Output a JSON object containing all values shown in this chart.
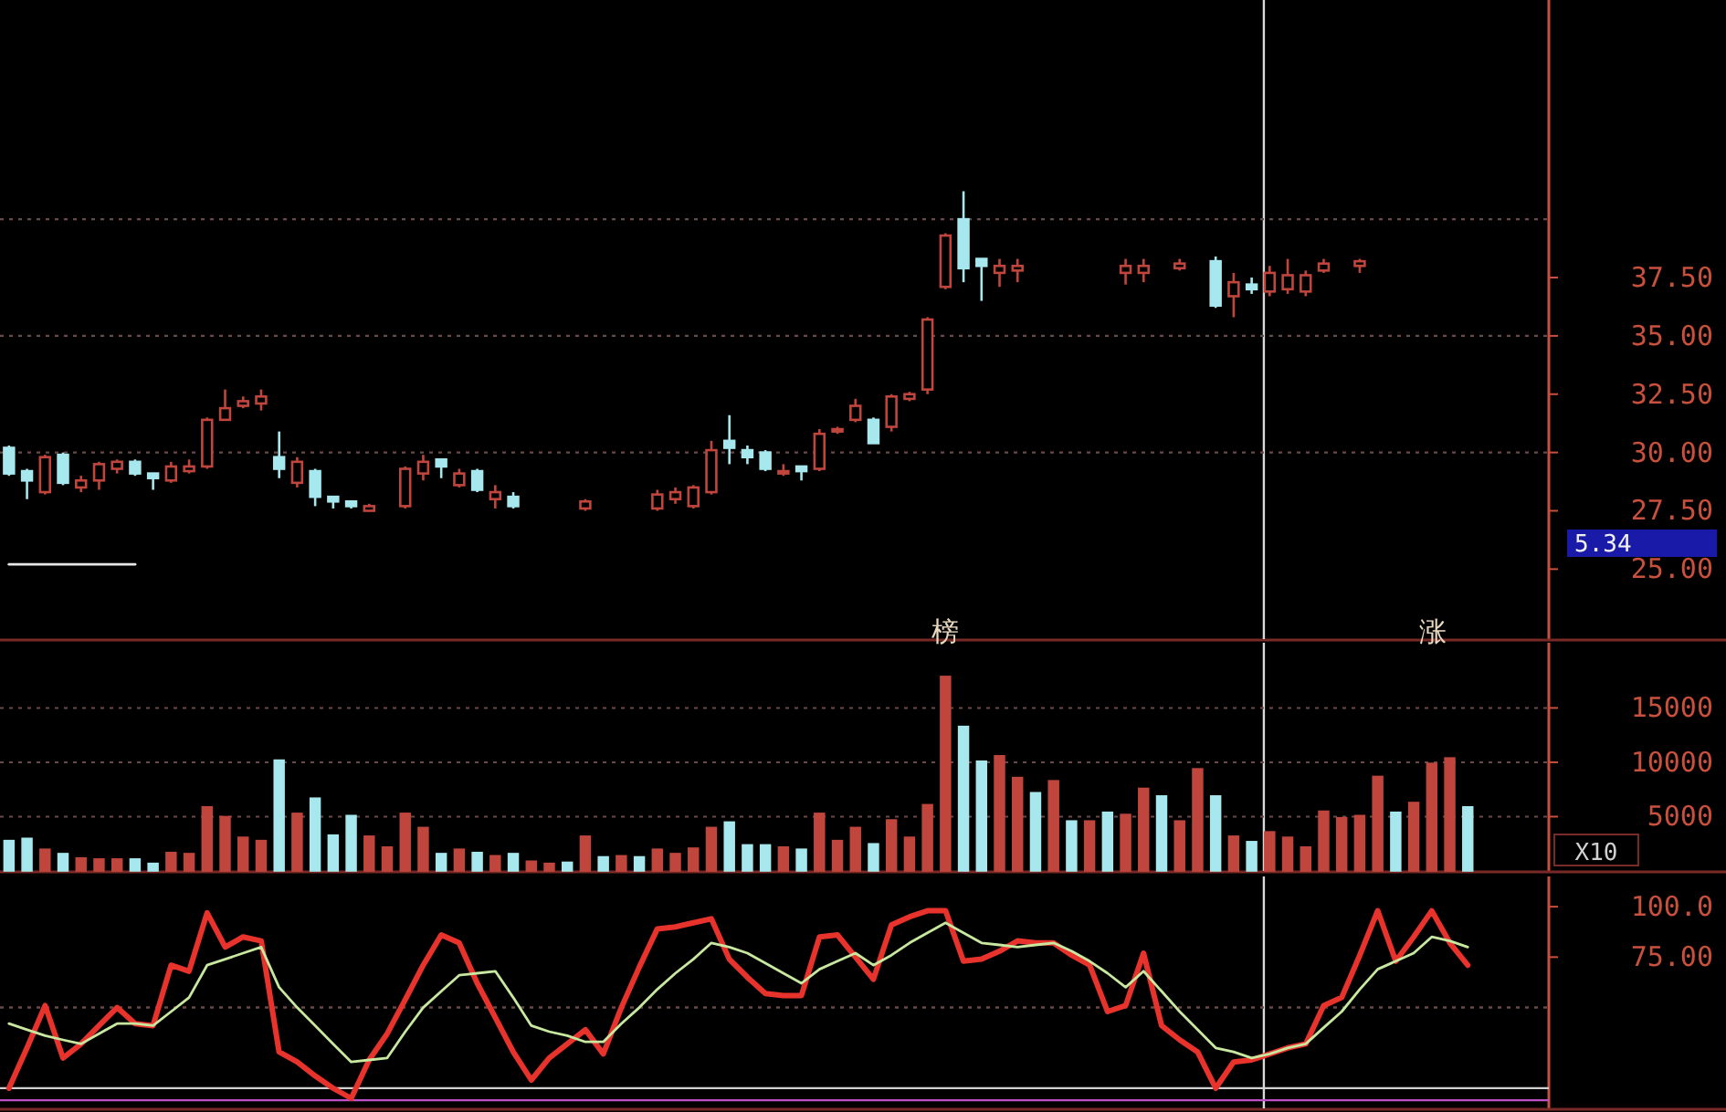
{
  "chart_data": [
    {
      "type": "candlestick",
      "tick_labels": "y",
      "categories": [
        null,
        null,
        null,
        null,
        null,
        null,
        null,
        null,
        null,
        null,
        null,
        null,
        null,
        null,
        null,
        null,
        null,
        null,
        null,
        null,
        null,
        null,
        null,
        null,
        null,
        null,
        null,
        null,
        null,
        null,
        null,
        null,
        null,
        null,
        null,
        null,
        null,
        null,
        null,
        null,
        null,
        null,
        null,
        null,
        null,
        null,
        null,
        null,
        null,
        null,
        null,
        null,
        null,
        null,
        null,
        null,
        null,
        null,
        null,
        null,
        null,
        null,
        null,
        null,
        null,
        null,
        null,
        null,
        null,
        null,
        null,
        null,
        null,
        null,
        null,
        null,
        null,
        null,
        null,
        null,
        null,
        null,
        null,
        null,
        null,
        null
      ],
      "ohlc": [
        [
          30.2,
          30.3,
          29.0,
          29.1
        ],
        [
          29.2,
          29.3,
          28.0,
          28.8
        ],
        [
          28.3,
          29.9,
          28.2,
          29.8
        ],
        [
          29.9,
          30.0,
          28.6,
          28.7
        ],
        [
          28.5,
          29.0,
          28.3,
          28.8
        ],
        [
          28.8,
          29.6,
          28.4,
          29.5
        ],
        [
          29.3,
          29.7,
          29.1,
          29.6
        ],
        [
          29.6,
          29.7,
          29.0,
          29.1
        ],
        [
          29.1,
          29.1,
          28.4,
          28.9
        ],
        [
          28.8,
          29.6,
          28.7,
          29.4
        ],
        [
          29.2,
          29.7,
          29.1,
          29.4
        ],
        [
          29.4,
          31.5,
          29.3,
          31.4
        ],
        [
          31.4,
          32.7,
          31.4,
          31.9
        ],
        [
          32.0,
          32.4,
          31.9,
          32.2
        ],
        [
          32.1,
          32.7,
          31.8,
          32.4
        ],
        [
          29.8,
          30.9,
          28.9,
          29.3
        ],
        [
          28.7,
          29.8,
          28.5,
          29.6
        ],
        [
          29.2,
          29.3,
          27.7,
          28.1
        ],
        [
          28.1,
          28.1,
          27.6,
          27.9
        ],
        [
          27.9,
          27.9,
          27.6,
          27.7
        ],
        [
          27.5,
          27.8,
          27.5,
          27.7
        ],
        null,
        [
          27.7,
          29.4,
          27.6,
          29.3
        ],
        [
          29.1,
          29.9,
          28.8,
          29.6
        ],
        [
          29.7,
          29.7,
          28.9,
          29.4
        ],
        [
          28.6,
          29.3,
          28.5,
          29.1
        ],
        [
          29.2,
          29.3,
          28.3,
          28.4
        ],
        [
          28.0,
          28.6,
          27.6,
          28.3
        ],
        [
          28.1,
          28.3,
          27.6,
          27.7
        ],
        null,
        null,
        null,
        [
          27.6,
          28.0,
          27.5,
          27.9
        ],
        null,
        null,
        null,
        [
          27.6,
          28.4,
          27.5,
          28.2
        ],
        [
          28.0,
          28.5,
          27.8,
          28.3
        ],
        [
          27.7,
          28.6,
          27.6,
          28.5
        ],
        [
          28.3,
          30.5,
          28.2,
          30.1
        ],
        [
          30.5,
          31.6,
          29.5,
          30.2
        ],
        [
          30.1,
          30.3,
          29.5,
          29.8
        ],
        [
          30.0,
          30.1,
          29.2,
          29.3
        ],
        [
          29.1,
          29.5,
          29.0,
          29.2
        ],
        [
          29.4,
          29.4,
          28.8,
          29.2
        ],
        [
          29.3,
          31.0,
          29.2,
          30.8
        ],
        [
          30.9,
          31.1,
          30.8,
          31.0
        ],
        [
          31.4,
          32.3,
          31.3,
          32.0
        ],
        [
          31.4,
          31.5,
          30.4,
          30.4
        ],
        [
          31.1,
          32.5,
          30.9,
          32.4
        ],
        [
          32.3,
          32.6,
          32.2,
          32.5
        ],
        [
          32.7,
          35.8,
          32.5,
          35.7
        ],
        [
          37.1,
          39.4,
          37.0,
          39.3
        ],
        [
          40.0,
          41.2,
          37.3,
          37.9
        ],
        [
          38.3,
          38.3,
          36.5,
          38.0
        ],
        [
          37.7,
          38.3,
          37.1,
          38.0
        ],
        [
          37.8,
          38.3,
          37.3,
          38.0
        ],
        null,
        null,
        null,
        null,
        null,
        [
          37.7,
          38.3,
          37.2,
          38.0
        ],
        [
          37.7,
          38.3,
          37.3,
          38.0
        ],
        null,
        [
          37.9,
          38.3,
          37.8,
          38.1
        ],
        null,
        [
          38.2,
          38.4,
          36.2,
          36.3
        ],
        [
          36.7,
          37.7,
          35.8,
          37.3
        ],
        [
          37.2,
          37.5,
          36.8,
          37.0
        ],
        [
          36.9,
          38.0,
          36.7,
          37.7
        ],
        [
          37.0,
          38.3,
          36.8,
          37.6
        ],
        [
          36.9,
          37.8,
          36.7,
          37.6
        ],
        [
          37.8,
          38.3,
          37.7,
          38.1
        ],
        null,
        [
          38.0,
          38.3,
          37.7,
          38.2
        ],
        null,
        null,
        null,
        null,
        null,
        null,
        null,
        null,
        null,
        null
      ],
      "colors": [
        "#a6e8ee",
        "#a6e8ee",
        "#c0463d",
        "#a6e8ee",
        "#c0463d",
        "#c0463d",
        "#c0463d",
        "#a6e8ee",
        "#a6e8ee",
        "#c0463d",
        "#c0463d",
        "#c0463d",
        "#c0463d",
        "#c0463d",
        "#c0463d",
        "#a6e8ee",
        "#c0463d",
        "#a6e8ee",
        "#a6e8ee",
        "#a6e8ee",
        "#c0463d",
        null,
        "#c0463d",
        "#c0463d",
        "#a6e8ee",
        "#c0463d",
        "#a6e8ee",
        "#c0463d",
        "#a6e8ee",
        null,
        null,
        null,
        "#c0463d",
        null,
        null,
        null,
        "#c0463d",
        "#c0463d",
        "#c0463d",
        "#c0463d",
        "#a6e8ee",
        "#a6e8ee",
        "#a6e8ee",
        "#c0463d",
        "#a6e8ee",
        "#c0463d",
        "#c0463d",
        "#c0463d",
        "#a6e8ee",
        "#c0463d",
        "#c0463d",
        "#c0463d",
        "#c0463d",
        "#a6e8ee",
        "#a6e8ee",
        "#c0463d",
        "#c0463d",
        null,
        null,
        null,
        null,
        null,
        "#c0463d",
        "#c0463d",
        null,
        "#c0463d",
        null,
        "#a6e8ee",
        "#c0463d",
        "#a6e8ee",
        "#c0463d",
        "#c0463d",
        "#c0463d",
        "#c0463d",
        null,
        "#c0463d",
        null,
        null,
        null,
        null,
        null,
        null,
        null,
        null,
        null,
        null
      ],
      "ylim": [
        22,
        49.4
      ],
      "yticks": [
        {
          "value": 25,
          "label": "25.00"
        },
        {
          "value": 27.5,
          "label": "27.50"
        },
        {
          "value": 30,
          "label": "30.00"
        },
        {
          "value": 32.5,
          "label": "32.50"
        },
        {
          "value": 35,
          "label": "35.00"
        },
        {
          "value": 37.5,
          "label": "37.50"
        }
      ],
      "ref_lines": [
        {
          "axis": "y",
          "value": 30,
          "line_style": "dotted",
          "color": "#6a4a48"
        },
        {
          "axis": "y",
          "value": 35,
          "line_style": "dotted",
          "color": "#6a4a48"
        },
        {
          "axis": "y",
          "value": 40,
          "line_style": "dotted",
          "color": "#6a4a48"
        }
      ],
      "series": [
        {
          "type": "line",
          "color": "#e8e8e8",
          "values": [
            25.2,
            25.2,
            25.2,
            25.2,
            25.2,
            25.2,
            25.2,
            25.2,
            null,
            null,
            null,
            null,
            null,
            null,
            null,
            null,
            null,
            null,
            null,
            null,
            null,
            null,
            null,
            null,
            null,
            null,
            null,
            null,
            null,
            null,
            null,
            null,
            null,
            null,
            null,
            null,
            null,
            null,
            null,
            null,
            null,
            null,
            null,
            null,
            null,
            null,
            null,
            null,
            null,
            null,
            null,
            null,
            null,
            null,
            null,
            null,
            null,
            null,
            null,
            null,
            null,
            null,
            null,
            null,
            null,
            null,
            null,
            null,
            null,
            null,
            null,
            null,
            null,
            null,
            null,
            null,
            null,
            null,
            null,
            null,
            null,
            null,
            null,
            null,
            null,
            null
          ]
        }
      ],
      "annotations": [
        "5.34"
      ]
    },
    {
      "type": "bar",
      "tick_labels": "y",
      "grid": "y",
      "ylabel": "X10",
      "categories": [
        null,
        null,
        null,
        null,
        null,
        null,
        null,
        null,
        null,
        null,
        null,
        null,
        null,
        null,
        null,
        null,
        null,
        null,
        null,
        null,
        null,
        null,
        null,
        null,
        null,
        null,
        null,
        null,
        null,
        null,
        null,
        null,
        null,
        null,
        null,
        null,
        null,
        null,
        null,
        null,
        null,
        null,
        null,
        null,
        null,
        null,
        null,
        null,
        null,
        null,
        null,
        null,
        null,
        null,
        null,
        null,
        null,
        null,
        null,
        null,
        null,
        null,
        null,
        null,
        null,
        null,
        null,
        null,
        null,
        null,
        null,
        null,
        null,
        null,
        null,
        null,
        null,
        null,
        null,
        null,
        null,
        null,
        null,
        null,
        null,
        null
      ],
      "values": [
        2800,
        3000,
        2000,
        1600,
        1200,
        1100,
        1100,
        1100,
        700,
        1700,
        1600,
        5900,
        5000,
        3100,
        2800,
        10200,
        5300,
        6700,
        3300,
        5100,
        3200,
        2200,
        5300,
        4000,
        1600,
        2000,
        1700,
        1400,
        1600,
        900,
        700,
        800,
        3200,
        1300,
        1400,
        1300,
        2000,
        1600,
        2100,
        4000,
        4500,
        2400,
        2400,
        2200,
        2000,
        5300,
        2800,
        4000,
        2500,
        4700,
        3100,
        6100,
        17900,
        13300,
        10100,
        10600,
        8600,
        7200,
        8300,
        4600,
        4600,
        5400,
        5200,
        7600,
        6900,
        4600,
        9400,
        6900,
        3200,
        2700,
        3600,
        3100,
        2200,
        5500,
        4900,
        5100,
        8700,
        5400,
        6300,
        9900,
        10400,
        5900,
        null,
        null,
        null,
        null
      ],
      "colors": [
        "#a6e8ee",
        "#a6e8ee",
        "#c0463d",
        "#a6e8ee",
        "#c0463d",
        "#c0463d",
        "#c0463d",
        "#a6e8ee",
        "#a6e8ee",
        "#c0463d",
        "#c0463d",
        "#c0463d",
        "#c0463d",
        "#c0463d",
        "#c0463d",
        "#a6e8ee",
        "#c0463d",
        "#a6e8ee",
        "#a6e8ee",
        "#a6e8ee",
        "#c0463d",
        "#c0463d",
        "#c0463d",
        "#c0463d",
        "#a6e8ee",
        "#c0463d",
        "#a6e8ee",
        "#c0463d",
        "#a6e8ee",
        "#c0463d",
        "#c0463d",
        "#a6e8ee",
        "#c0463d",
        "#a6e8ee",
        "#c0463d",
        "#a6e8ee",
        "#c0463d",
        "#c0463d",
        "#c0463d",
        "#c0463d",
        "#a6e8ee",
        "#a6e8ee",
        "#a6e8ee",
        "#c0463d",
        "#a6e8ee",
        "#c0463d",
        "#c0463d",
        "#c0463d",
        "#a6e8ee",
        "#c0463d",
        "#c0463d",
        "#c0463d",
        "#c0463d",
        "#a6e8ee",
        "#a6e8ee",
        "#c0463d",
        "#c0463d",
        "#a6e8ee",
        "#c0463d",
        "#a6e8ee",
        "#c0463d",
        "#a6e8ee",
        "#c0463d",
        "#c0463d",
        "#a6e8ee",
        "#c0463d",
        "#c0463d",
        "#a6e8ee",
        "#c0463d",
        "#a6e8ee",
        "#c0463d",
        "#c0463d",
        "#c0463d",
        "#c0463d",
        "#c0463d",
        "#c0463d",
        "#c0463d",
        "#a6e8ee",
        "#c0463d",
        "#c0463d",
        "#c0463d",
        "#a6e8ee",
        null,
        null,
        null,
        null
      ],
      "ylim": [
        0,
        21000
      ],
      "yticks": [
        5000,
        10000,
        15000
      ],
      "annotations": [
        "榜",
        "涨"
      ]
    },
    {
      "type": "line",
      "tick_labels": "y",
      "categories": [
        null,
        null,
        null,
        null,
        null,
        null,
        null,
        null,
        null,
        null,
        null,
        null,
        null,
        null,
        null,
        null,
        null,
        null,
        null,
        null,
        null,
        null,
        null,
        null,
        null,
        null,
        null,
        null,
        null,
        null,
        null,
        null,
        null,
        null,
        null,
        null,
        null,
        null,
        null,
        null,
        null,
        null,
        null,
        null,
        null,
        null,
        null,
        null,
        null,
        null,
        null,
        null,
        null,
        null,
        null,
        null,
        null,
        null,
        null,
        null,
        null,
        null,
        null,
        null,
        null,
        null,
        null,
        null,
        null,
        null,
        null,
        null,
        null,
        null,
        null,
        null,
        null,
        null,
        null,
        null,
        null,
        null,
        null,
        null,
        null,
        null
      ],
      "ylim": [
        0,
        115
      ],
      "yticks": [
        {
          "value": 75,
          "label": "75.00"
        },
        {
          "value": 100,
          "label": "100.0"
        }
      ],
      "ref_lines": [
        {
          "axis": "y",
          "value": 50,
          "line_style": "dotted",
          "color": "#6a4a48"
        },
        {
          "axis": "y",
          "value": 10,
          "line_style": "solid",
          "color": "#d0d0d0"
        },
        {
          "axis": "y",
          "value": 4,
          "line_style": "solid",
          "color": "#c050c8"
        }
      ],
      "series": [
        {
          "color": "#e8322c",
          "values": [
            10,
            30,
            51,
            25,
            32,
            41,
            50,
            42,
            41,
            71,
            68,
            97,
            80,
            85,
            83,
            28,
            23,
            16,
            10,
            5,
            24,
            37,
            54,
            71,
            86,
            82,
            62,
            45,
            28,
            14,
            25,
            32,
            39,
            27,
            50,
            70,
            89,
            90,
            92,
            94,
            74,
            65,
            57,
            56,
            56,
            85,
            86,
            75,
            64,
            91,
            95,
            98,
            98,
            73,
            74,
            78,
            83,
            82,
            82,
            76,
            71,
            48,
            51,
            77,
            41,
            34,
            28,
            10,
            23,
            24,
            27,
            30,
            32,
            51,
            55,
            76,
            98,
            73,
            85,
            98,
            82,
            71,
            null,
            null,
            null,
            null
          ]
        },
        {
          "color": "#c8e8a0",
          "values": [
            42,
            39,
            36,
            34,
            32,
            37,
            42,
            42,
            41,
            48,
            55,
            71,
            74,
            77,
            80,
            60,
            50,
            41,
            32,
            23,
            24,
            25,
            38,
            50,
            58,
            66,
            67,
            68,
            55,
            41,
            38,
            36,
            33,
            33,
            42,
            50,
            59,
            67,
            74,
            82,
            80,
            77,
            72,
            67,
            62,
            69,
            73,
            77,
            71,
            76,
            82,
            87,
            92,
            87,
            82,
            81,
            80,
            81,
            82,
            78,
            73,
            67,
            60,
            68,
            58,
            48,
            39,
            30,
            28,
            25,
            27,
            30,
            32,
            40,
            48,
            59,
            69,
            73,
            77,
            85,
            83,
            80,
            null,
            null,
            null,
            null
          ]
        }
      ]
    }
  ]
}
